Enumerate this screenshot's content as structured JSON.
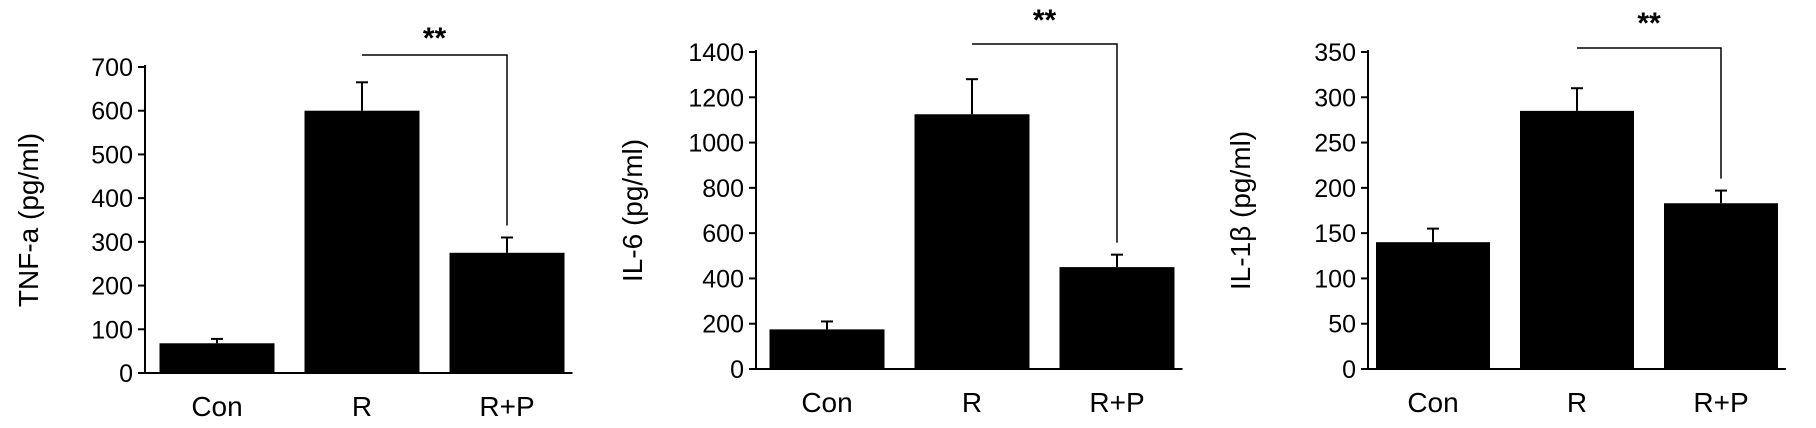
{
  "chart_data": [
    {
      "type": "bar",
      "ylabel": "TNF-a (pg/ml)",
      "categories": [
        "Con",
        "R",
        "R+P"
      ],
      "values": [
        68,
        600,
        275
      ],
      "errors": [
        10,
        65,
        35
      ],
      "ylim": [
        0,
        700
      ],
      "yticks": [
        "0",
        "100",
        "200",
        "300",
        "400",
        "500",
        "600",
        "700"
      ],
      "significance": {
        "from": 1,
        "to": 2,
        "label": "**"
      },
      "bar_color": "#000000",
      "grid": false
    },
    {
      "type": "bar",
      "ylabel": "IL-6 (pg/ml)",
      "categories": [
        "Con",
        "R",
        "R+P"
      ],
      "values": [
        175,
        1125,
        450
      ],
      "errors": [
        35,
        155,
        55
      ],
      "ylim": [
        0,
        1400
      ],
      "yticks": [
        "0",
        "200",
        "400",
        "600",
        "800",
        "1000",
        "1200",
        "1400"
      ],
      "significance": {
        "from": 1,
        "to": 2,
        "label": "**"
      },
      "bar_color": "#000000",
      "grid": false
    },
    {
      "type": "bar",
      "ylabel": "IL-1β (pg/ml)",
      "categories": [
        "Con",
        "R",
        "R+P"
      ],
      "values": [
        140,
        285,
        183
      ],
      "errors": [
        15,
        25,
        14
      ],
      "ylim": [
        0,
        350
      ],
      "yticks": [
        "0",
        "50",
        "100",
        "150",
        "200",
        "250",
        "300",
        "350"
      ],
      "significance": {
        "from": 1,
        "to": 2,
        "label": "**"
      },
      "bar_color": "#000000",
      "grid": false
    }
  ]
}
